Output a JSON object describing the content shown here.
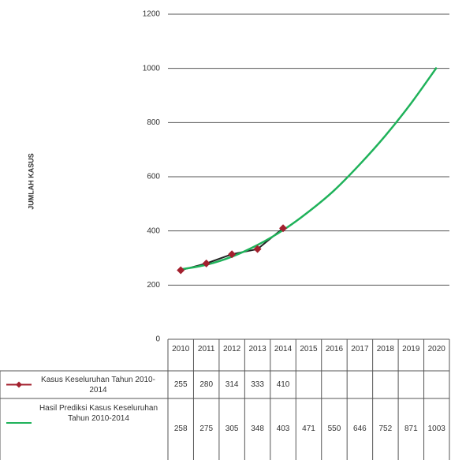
{
  "chart_data": {
    "type": "line",
    "y_label": "JUMLAH KASUS",
    "categories": [
      "2010",
      "2011",
      "2012",
      "2013",
      "2014",
      "2015",
      "2016",
      "2017",
      "2018",
      "2019",
      "2020"
    ],
    "series": [
      {
        "name": "Kasus Keseluruhan Tahun 2010-2014",
        "color": "#a3202e",
        "values": [
          255,
          280,
          314,
          333,
          410,
          null,
          null,
          null,
          null,
          null,
          null
        ]
      },
      {
        "name": "Hasil Prediksi Kasus Keseluruhan Tahun 2010-2014",
        "color": "#1fb25a",
        "values": [
          258,
          275,
          305,
          348,
          403,
          471,
          550,
          646,
          752,
          871,
          1003
        ]
      }
    ],
    "ylim": [
      0,
      1200
    ],
    "yticks": [
      0,
      200,
      400,
      600,
      800,
      1000,
      1200
    ],
    "grid": true
  }
}
